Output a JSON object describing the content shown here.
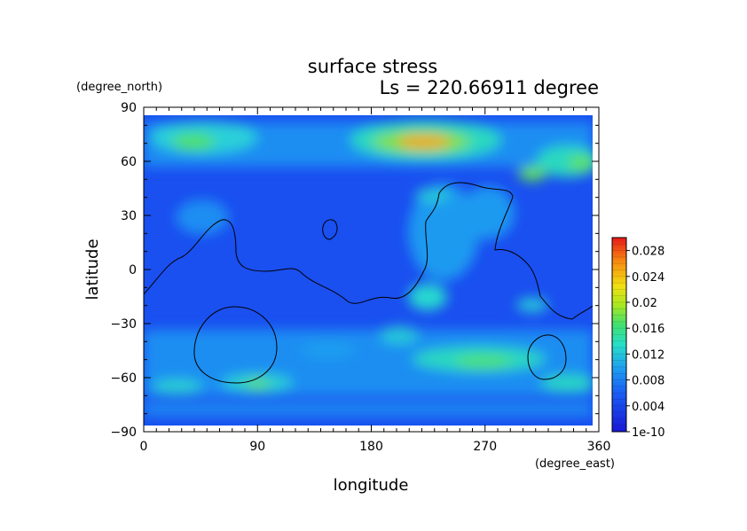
{
  "chart_data": {
    "type": "heatmap",
    "title": "surface stress",
    "subtitle": "Ls = 220.66911 degree",
    "xlabel": "longitude",
    "ylabel": "latitude",
    "xunit": "(degree_east)",
    "yunit": "(degree_north)",
    "xlim": [
      0,
      360
    ],
    "ylim": [
      -90,
      90
    ],
    "x_ticks": [
      0,
      90,
      180,
      270,
      360
    ],
    "x_tick_labels": [
      "0",
      "90",
      "180",
      "270",
      "360"
    ],
    "y_ticks": [
      90,
      60,
      30,
      0,
      -30,
      -60,
      -90
    ],
    "y_tick_labels": [
      "90",
      "60",
      "30",
      "0",
      "−30",
      "−60",
      "−90"
    ],
    "colorbar": {
      "min": 0,
      "max": 0.03,
      "tick_values": [
        0.028,
        0.024,
        0.02,
        0.016,
        0.012,
        0.008,
        0.004,
        0
      ],
      "tick_labels": [
        "0.028",
        "0.024",
        "0.02",
        "0.016",
        "0.012",
        "0.008",
        "0.004",
        "1e-10"
      ]
    },
    "features": [
      {
        "name": "northern high-latitude band",
        "lon": [
          0,
          360
        ],
        "lat": [
          52,
          82
        ],
        "value": 0.008
      },
      {
        "name": "peak near 225E",
        "lon": 225,
        "lat": 70,
        "value": 0.026
      },
      {
        "name": "peak near 40E",
        "lon": 40,
        "lat": 70,
        "value": 0.02
      },
      {
        "name": "peak near 350E",
        "lon": 350,
        "lat": 60,
        "value": 0.016
      },
      {
        "name": "peak near 305E",
        "lon": 305,
        "lat": 53,
        "value": 0.016
      },
      {
        "name": "peak near 260E",
        "lon": 260,
        "lat": -48,
        "value": 0.014
      },
      {
        "name": "peak near 320E",
        "lon": 320,
        "lat": -63,
        "value": 0.014
      },
      {
        "name": "peak near 90E",
        "lon": 90,
        "lat": -63,
        "value": 0.016
      },
      {
        "name": "peak near 30E",
        "lon": 30,
        "lat": -63,
        "value": 0.012
      },
      {
        "name": "southern mid-latitude band",
        "lon": [
          0,
          360
        ],
        "lat": [
          -72,
          -42
        ],
        "value": 0.006
      }
    ]
  }
}
